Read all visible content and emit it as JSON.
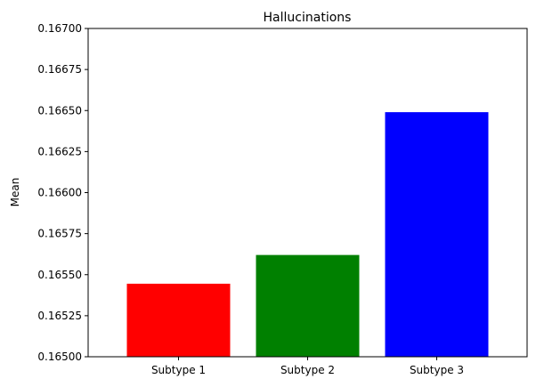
{
  "chart_data": {
    "type": "bar",
    "title": "Hallucinations",
    "xlabel": "",
    "ylabel": "Mean",
    "categories": [
      "Subtype 1",
      "Subtype 2",
      "Subtype 3"
    ],
    "values": [
      0.165445,
      0.16562,
      0.16649
    ],
    "colors": [
      "#ff0000",
      "#008000",
      "#0000ff"
    ],
    "ylim": [
      0.165,
      0.167
    ],
    "yticks": [
      "0.16500",
      "0.16525",
      "0.16550",
      "0.16575",
      "0.16600",
      "0.16625",
      "0.16650",
      "0.16675",
      "0.16700"
    ],
    "grid": false,
    "legend": "none"
  }
}
